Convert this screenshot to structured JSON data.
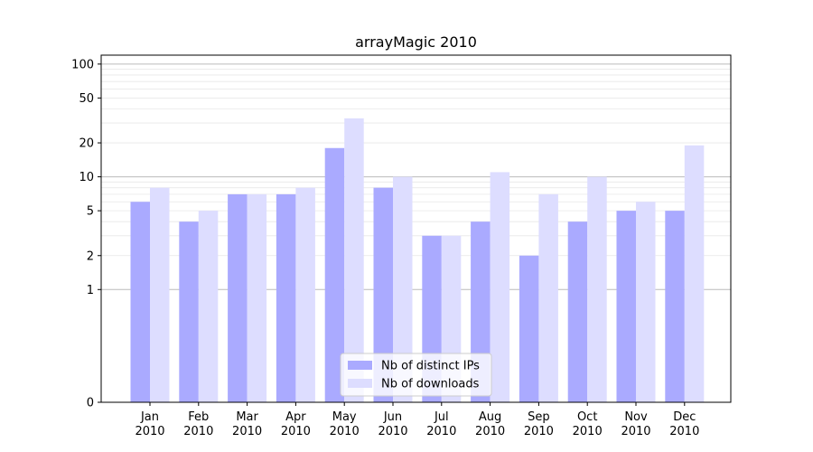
{
  "chart_data": {
    "type": "bar",
    "title": "arrayMagic 2010",
    "xlabel": "",
    "ylabel": "",
    "y_scale": "symlog",
    "ylim": [
      0,
      120
    ],
    "y_ticks": [
      0,
      1,
      2,
      5,
      10,
      20,
      50,
      100
    ],
    "grid": true,
    "legend_position": "bottom-center",
    "categories": [
      [
        "Jan",
        "2010"
      ],
      [
        "Feb",
        "2010"
      ],
      [
        "Mar",
        "2010"
      ],
      [
        "Apr",
        "2010"
      ],
      [
        "May",
        "2010"
      ],
      [
        "Jun",
        "2010"
      ],
      [
        "Jul",
        "2010"
      ],
      [
        "Aug",
        "2010"
      ],
      [
        "Sep",
        "2010"
      ],
      [
        "Oct",
        "2010"
      ],
      [
        "Nov",
        "2010"
      ],
      [
        "Dec",
        "2010"
      ]
    ],
    "series": [
      {
        "name": "Nb of distinct IPs",
        "color": "#aaaaff",
        "values": [
          6,
          4,
          7,
          7,
          18,
          8,
          3,
          4,
          2,
          4,
          5,
          5
        ]
      },
      {
        "name": "Nb of downloads",
        "color": "#ddddff",
        "values": [
          8,
          5,
          7,
          8,
          33,
          10,
          3,
          11,
          7,
          10,
          6,
          19
        ]
      }
    ]
  }
}
